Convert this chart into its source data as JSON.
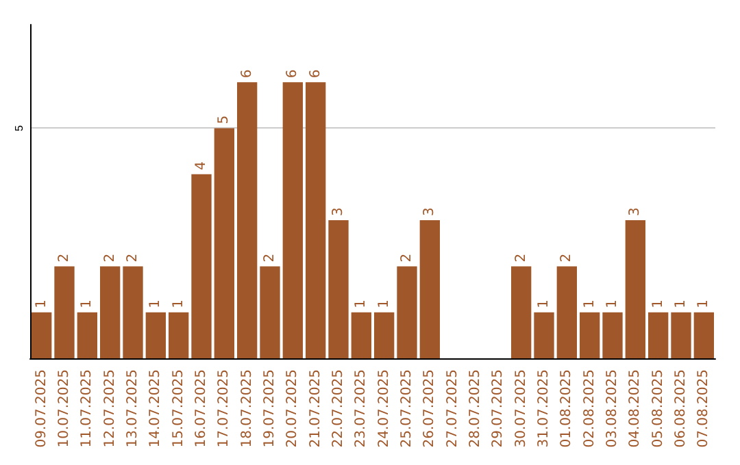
{
  "chart_data": {
    "type": "bar",
    "categories": [
      "09.07.2025",
      "10.07.2025",
      "11.07.2025",
      "12.07.2025",
      "13.07.2025",
      "14.07.2025",
      "15.07.2025",
      "16.07.2025",
      "17.07.2025",
      "18.07.2025",
      "19.07.2025",
      "20.07.2025",
      "21.07.2025",
      "22.07.2025",
      "23.07.2025",
      "24.07.2025",
      "25.07.2025",
      "26.07.2025",
      "27.07.2025",
      "28.07.2025",
      "29.07.2025",
      "30.07.2025",
      "31.07.2025",
      "01.08.2025",
      "02.08.2025",
      "03.08.2025",
      "04.08.2025",
      "05.08.2025",
      "06.08.2025",
      "07.08.2025"
    ],
    "values": [
      1,
      2,
      1,
      2,
      2,
      1,
      1,
      4,
      5,
      6,
      2,
      6,
      6,
      3,
      1,
      1,
      2,
      3,
      null,
      null,
      null,
      2,
      1,
      2,
      1,
      1,
      3,
      1,
      1,
      1
    ],
    "color": "#a0582a",
    "ylim": [
      0,
      7.25
    ],
    "yticks": [
      5
    ],
    "grid": "y",
    "data_labels": true
  }
}
